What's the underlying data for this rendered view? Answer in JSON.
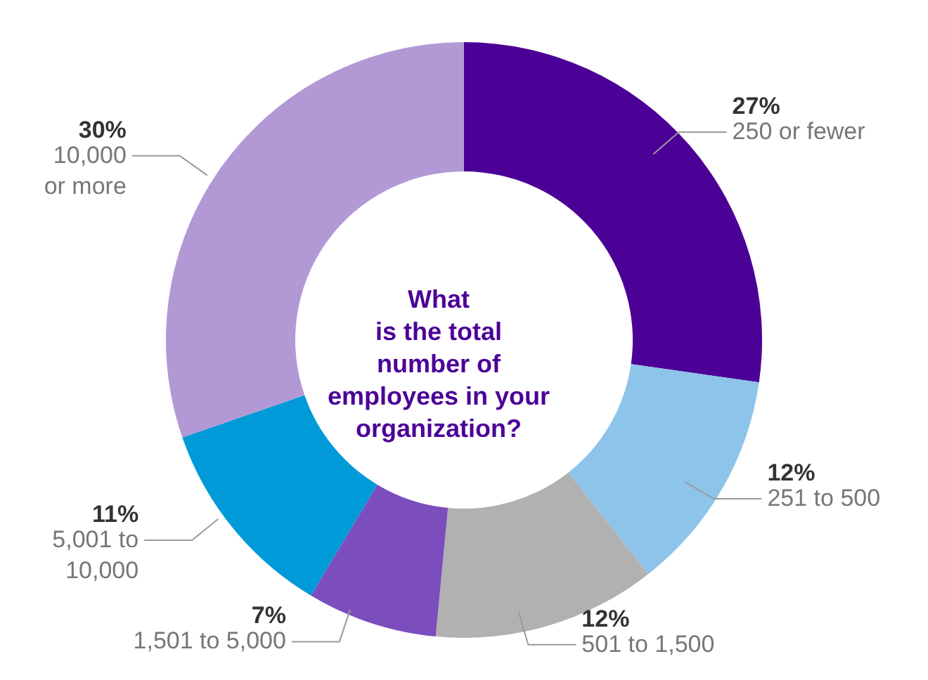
{
  "chart_data": {
    "type": "donut",
    "title": "What\nis the total\nnumber of\nemployees in your\norganization?",
    "categories": [
      "250 or fewer",
      "251 to 500",
      "501 to 1,500",
      "1,501 to 5,000",
      "5,001 to\n10,000",
      "10,000\nor more"
    ],
    "values": [
      27,
      12,
      12,
      7,
      11,
      30
    ],
    "value_labels": [
      "27%",
      "12%",
      "12%",
      "7%",
      "11%",
      "30%"
    ],
    "colors": [
      "#4b0096",
      "#8ec3ea",
      "#b1b1b1",
      "#7b4dbd",
      "#009ad8",
      "#b299d6"
    ]
  }
}
